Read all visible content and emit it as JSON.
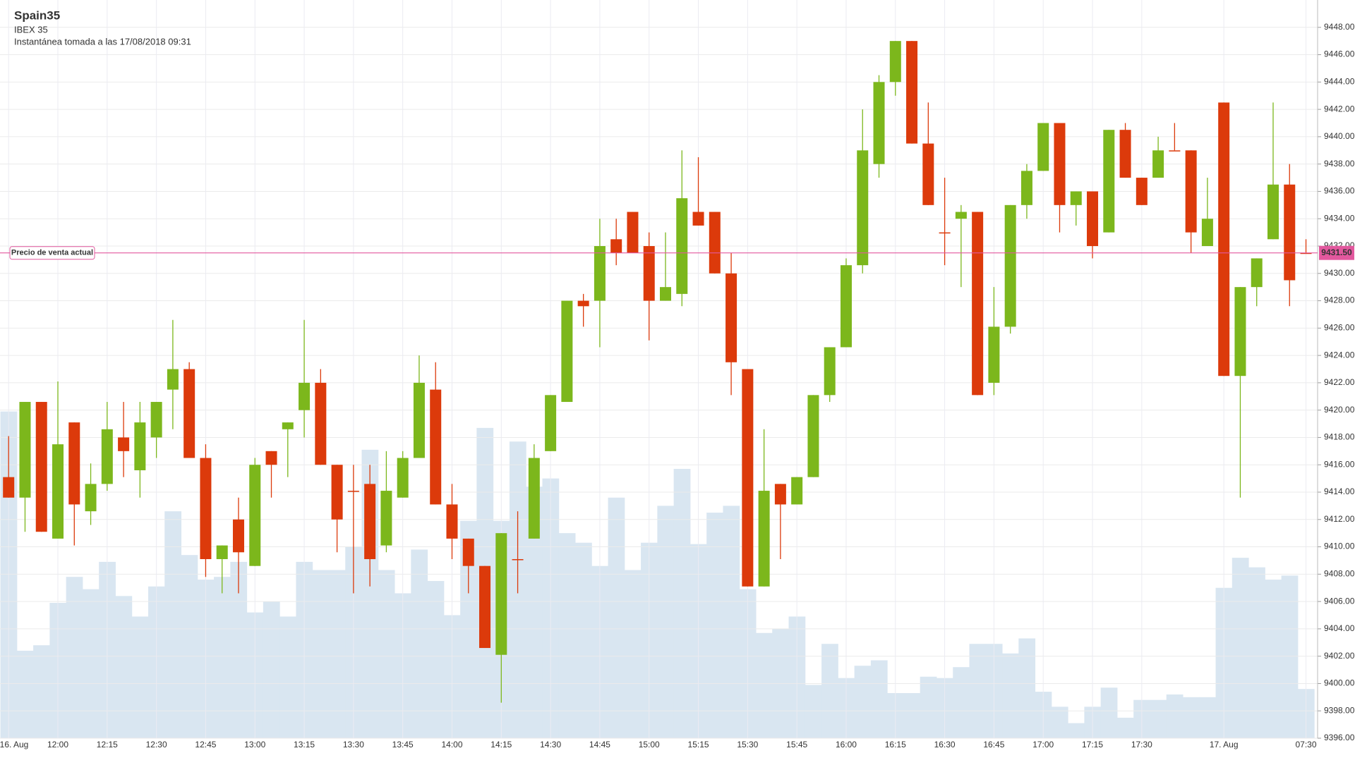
{
  "chart_data": {
    "type": "candlestick",
    "title": "Spain35",
    "subtitle": "IBEX 35",
    "snapshot": "Instantánea tomada a las 17/08/2018 09:31",
    "categories": [
      "16. Aug",
      null,
      null,
      "12:00",
      null,
      null,
      "12:15",
      null,
      null,
      "12:30",
      null,
      null,
      "12:45",
      null,
      null,
      "13:00",
      null,
      null,
      "13:15",
      null,
      null,
      "13:30",
      null,
      null,
      "13:45",
      null,
      null,
      "14:00",
      null,
      null,
      "14:15",
      null,
      null,
      "14:30",
      null,
      null,
      "14:45",
      null,
      null,
      "15:00",
      null,
      null,
      "15:15",
      null,
      null,
      "15:30",
      null,
      null,
      "15:45",
      null,
      null,
      "16:00",
      null,
      null,
      "16:15",
      null,
      null,
      "16:30",
      null,
      null,
      "16:45",
      null,
      null,
      "17:00",
      null,
      null,
      "17:15",
      null,
      null,
      "17:30",
      null,
      null,
      null,
      null,
      "17. Aug",
      null,
      null,
      null,
      null,
      "07:30"
    ],
    "open": [
      9415.1,
      9413.6,
      9420.6,
      9410.6,
      9419.1,
      9412.6,
      9414.6,
      9418.0,
      9415.6,
      9418.0,
      9421.5,
      9423.0,
      9416.5,
      9409.1,
      9412.0,
      9408.6,
      9417.0,
      9418.6,
      9420.0,
      9422.0,
      9416.0,
      9414.1,
      9414.6,
      9410.1,
      9413.6,
      9416.5,
      9421.5,
      9413.1,
      9410.6,
      9408.6,
      9402.1,
      9409.1,
      9410.6,
      9417.0,
      9420.6,
      9428.0,
      9428.0,
      9432.5,
      9434.5,
      9432.0,
      9428.0,
      9428.5,
      9434.5,
      9434.5,
      9430.0,
      9423.0,
      9407.1,
      9414.6,
      9413.1,
      9415.1,
      9421.1,
      9424.6,
      9430.6,
      9438.0,
      9444.0,
      9447.0,
      9439.5,
      9433.0,
      9434.0,
      9434.5,
      9422.0,
      9426.1,
      9435.0,
      9437.5,
      9441.0,
      9435.0,
      9436.0,
      9433.0,
      9440.5,
      9437.0,
      9437.0,
      9439.0,
      9439.0,
      9432.0,
      9442.5,
      9422.5,
      9429.0,
      9432.5,
      9436.5,
      9431.5
    ],
    "high": [
      9418.1,
      9420.6,
      9420.6,
      9422.1,
      9419.1,
      9416.1,
      9420.6,
      9420.6,
      9420.6,
      9420.6,
      9426.6,
      9423.5,
      9417.5,
      9410.1,
      9413.6,
      9416.5,
      9417.0,
      9419.1,
      9426.6,
      9423.0,
      9416.0,
      9416.0,
      9416.0,
      9417.0,
      9417.0,
      9424.0,
      9423.5,
      9414.6,
      9410.6,
      9408.6,
      9411.0,
      9412.6,
      9417.5,
      9421.1,
      9428.0,
      9428.5,
      9434.0,
      9434.0,
      9434.5,
      9433.0,
      9433.0,
      9439.0,
      9438.5,
      9434.5,
      9431.5,
      9423.0,
      9418.6,
      9414.6,
      9415.1,
      9421.1,
      9424.6,
      9431.1,
      9442.0,
      9444.5,
      9447.0,
      9447.0,
      9442.5,
      9437.0,
      9435.0,
      9434.5,
      9429.0,
      9435.0,
      9438.0,
      9441.0,
      9441.0,
      9436.0,
      9436.0,
      9440.5,
      9441.0,
      9437.0,
      9440.0,
      9441.0,
      9439.0,
      9437.0,
      9442.5,
      9429.0,
      9431.1,
      9442.5,
      9438.0,
      9432.5
    ],
    "low": [
      9413.6,
      9411.1,
      9411.1,
      9410.6,
      9410.1,
      9411.6,
      9414.1,
      9415.1,
      9413.6,
      9416.5,
      9418.6,
      9416.5,
      9407.8,
      9406.6,
      9406.6,
      9408.6,
      9413.6,
      9415.1,
      9418.0,
      9416.0,
      9409.6,
      9406.6,
      9407.1,
      9409.6,
      9413.6,
      9416.5,
      9413.1,
      9409.1,
      9406.6,
      9402.6,
      9398.6,
      9406.6,
      9410.6,
      9417.0,
      9420.6,
      9426.1,
      9424.6,
      9430.6,
      9431.5,
      9425.1,
      9428.0,
      9427.6,
      9433.5,
      9430.0,
      9421.1,
      9407.1,
      9407.1,
      9409.1,
      9413.1,
      9415.1,
      9420.6,
      9424.6,
      9430.0,
      9437.0,
      9443.0,
      9439.5,
      9435.0,
      9430.6,
      9429.0,
      9421.1,
      9421.1,
      9425.6,
      9434.0,
      9437.5,
      9433.0,
      9433.5,
      9431.1,
      9433.0,
      9437.0,
      9435.0,
      9437.0,
      9439.0,
      9431.5,
      9432.0,
      9422.5,
      9413.6,
      9427.6,
      9432.5,
      9427.6,
      9431.5
    ],
    "close": [
      9413.6,
      9420.6,
      9411.1,
      9417.5,
      9413.1,
      9414.6,
      9418.6,
      9417.0,
      9419.1,
      9420.6,
      9423.0,
      9416.5,
      9409.1,
      9410.1,
      9409.6,
      9416.0,
      9416.0,
      9419.1,
      9422.0,
      9416.0,
      9412.0,
      9414.1,
      9409.1,
      9414.1,
      9416.5,
      9422.0,
      9413.1,
      9410.6,
      9408.6,
      9402.6,
      9411.0,
      9409.1,
      9416.5,
      9421.1,
      9428.0,
      9427.6,
      9432.0,
      9431.5,
      9431.5,
      9428.0,
      9429.0,
      9435.5,
      9433.5,
      9430.0,
      9423.5,
      9407.1,
      9414.1,
      9413.1,
      9415.1,
      9421.1,
      9424.6,
      9430.6,
      9439.0,
      9444.0,
      9447.0,
      9439.5,
      9435.0,
      9433.0,
      9434.5,
      9421.1,
      9426.1,
      9435.0,
      9437.5,
      9441.0,
      9435.0,
      9436.0,
      9432.0,
      9440.5,
      9437.0,
      9435.0,
      9439.0,
      9439.0,
      9433.0,
      9434.0,
      9422.5,
      9429.0,
      9431.1,
      9436.5,
      9429.5,
      9431.5
    ],
    "volume": [
      9419.9,
      9402.4,
      9402.8,
      9405.9,
      9407.8,
      9406.9,
      9408.9,
      9406.4,
      9404.9,
      9407.1,
      9412.6,
      9409.4,
      9407.6,
      9407.8,
      9408.9,
      9405.2,
      9406.0,
      9404.9,
      9408.9,
      9408.3,
      9408.3,
      9410.0,
      9417.1,
      9408.3,
      9406.6,
      9409.8,
      9407.5,
      9405.0,
      9411.9,
      9418.7,
      9411.9,
      9417.7,
      9414.4,
      9415.0,
      9411.0,
      9410.3,
      9408.6,
      9413.6,
      9408.3,
      9410.3,
      9413.0,
      9415.7,
      9410.2,
      9412.5,
      9413.0,
      9406.9,
      9403.7,
      9404.0,
      9404.9,
      9399.9,
      9402.9,
      9400.4,
      9401.3,
      9401.7,
      9399.3,
      9399.3,
      9400.5,
      9400.4,
      9401.2,
      9402.9,
      9402.9,
      9402.2,
      9403.3,
      9399.4,
      9398.3,
      9397.1,
      9398.3,
      9399.7,
      9397.5,
      9398.8,
      9398.8,
      9399.2,
      9399.0,
      9399.0,
      9407.0,
      9409.2,
      9408.5,
      9407.6,
      9407.9,
      9399.6
    ],
    "up_color": "#7cb71c",
    "down_color": "#dc3a0b",
    "volume_color": "#d9e6f1",
    "ylim": [
      9396,
      9450
    ],
    "yticks": [
      {
        "value": 9396,
        "label": "9396.00"
      },
      {
        "value": 9398,
        "label": "9398.00"
      },
      {
        "value": 9400,
        "label": "9400.00"
      },
      {
        "value": 9402,
        "label": "9402.00"
      },
      {
        "value": 9404,
        "label": "9404.00"
      },
      {
        "value": 9406,
        "label": "9406.00"
      },
      {
        "value": 9408,
        "label": "9408.00"
      },
      {
        "value": 9410,
        "label": "9410.00"
      },
      {
        "value": 9412,
        "label": "9412.00"
      },
      {
        "value": 9414,
        "label": "9414.00"
      },
      {
        "value": 9416,
        "label": "9416.00"
      },
      {
        "value": 9418,
        "label": "9418.00"
      },
      {
        "value": 9420,
        "label": "9420.00"
      },
      {
        "value": 9422,
        "label": "9422.00"
      },
      {
        "value": 9424,
        "label": "9424.00"
      },
      {
        "value": 9426,
        "label": "9426.00"
      },
      {
        "value": 9428,
        "label": "9428.00"
      },
      {
        "value": 9430,
        "label": "9430.00"
      },
      {
        "value": 9432,
        "label": "9432.00"
      },
      {
        "value": 9434,
        "label": "9434.00"
      },
      {
        "value": 9436,
        "label": "9436.00"
      },
      {
        "value": 9438,
        "label": "9438.00"
      },
      {
        "value": 9440,
        "label": "9440.00"
      },
      {
        "value": 9442,
        "label": "9442.00"
      },
      {
        "value": 9444,
        "label": "9444.00"
      },
      {
        "value": 9446,
        "label": "9446.00"
      },
      {
        "value": 9448,
        "label": "9448.00"
      }
    ],
    "grid": true,
    "price_line": {
      "name": "Precio de venta actual",
      "value": 9431.5,
      "label": "9431.50",
      "color": "#e2589e"
    }
  }
}
